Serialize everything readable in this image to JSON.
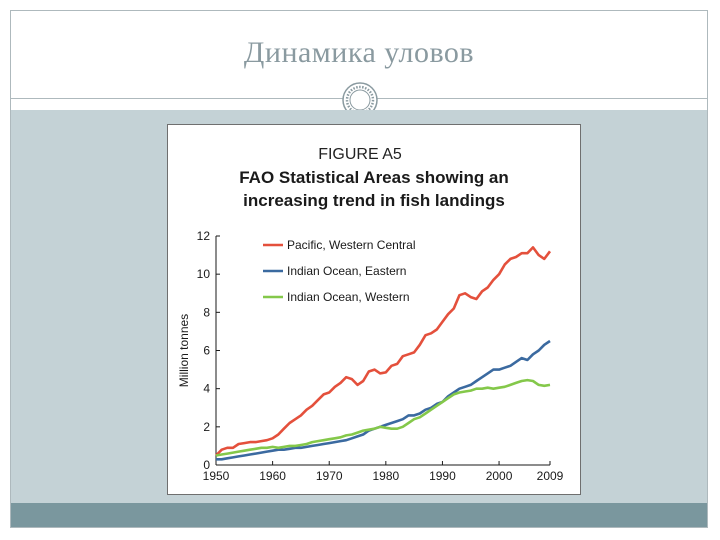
{
  "slide": {
    "title": "Динамика уловов"
  },
  "chart_data": {
    "type": "line",
    "figure_label": "FIGURE A5",
    "title": "FAO Statistical Areas showing an increasing trend in fish landings",
    "title_lines": [
      "FAO Statistical Areas showing an",
      "increasing trend in fish landings"
    ],
    "xlabel": "",
    "ylabel": "Million tonnes",
    "xlim": [
      1950,
      2009
    ],
    "ylim": [
      0,
      12
    ],
    "x_ticks": [
      1950,
      1960,
      1970,
      1980,
      1990,
      2000,
      2009
    ],
    "y_ticks": [
      0,
      2,
      4,
      6,
      8,
      10,
      12
    ],
    "legend_position": "top-left",
    "grid": false,
    "series": [
      {
        "name": "Pacific, Western Central",
        "color": "#e4503c",
        "points": [
          [
            1950,
            0.5
          ],
          [
            1951,
            0.8
          ],
          [
            1952,
            0.9
          ],
          [
            1953,
            0.9
          ],
          [
            1954,
            1.1
          ],
          [
            1955,
            1.15
          ],
          [
            1956,
            1.2
          ],
          [
            1957,
            1.2
          ],
          [
            1958,
            1.25
          ],
          [
            1959,
            1.3
          ],
          [
            1960,
            1.4
          ],
          [
            1961,
            1.6
          ],
          [
            1962,
            1.9
          ],
          [
            1963,
            2.2
          ],
          [
            1964,
            2.4
          ],
          [
            1965,
            2.6
          ],
          [
            1966,
            2.9
          ],
          [
            1967,
            3.1
          ],
          [
            1968,
            3.4
          ],
          [
            1969,
            3.7
          ],
          [
            1970,
            3.8
          ],
          [
            1971,
            4.1
          ],
          [
            1972,
            4.3
          ],
          [
            1973,
            4.6
          ],
          [
            1974,
            4.5
          ],
          [
            1975,
            4.2
          ],
          [
            1976,
            4.4
          ],
          [
            1977,
            4.9
          ],
          [
            1978,
            5.0
          ],
          [
            1979,
            4.8
          ],
          [
            1980,
            4.85
          ],
          [
            1981,
            5.2
          ],
          [
            1982,
            5.3
          ],
          [
            1983,
            5.7
          ],
          [
            1984,
            5.8
          ],
          [
            1985,
            5.9
          ],
          [
            1986,
            6.3
          ],
          [
            1987,
            6.8
          ],
          [
            1988,
            6.9
          ],
          [
            1989,
            7.1
          ],
          [
            1990,
            7.5
          ],
          [
            1991,
            7.9
          ],
          [
            1992,
            8.2
          ],
          [
            1993,
            8.9
          ],
          [
            1994,
            9.0
          ],
          [
            1995,
            8.8
          ],
          [
            1996,
            8.7
          ],
          [
            1997,
            9.1
          ],
          [
            1998,
            9.3
          ],
          [
            1999,
            9.7
          ],
          [
            2000,
            10.0
          ],
          [
            2001,
            10.5
          ],
          [
            2002,
            10.8
          ],
          [
            2003,
            10.9
          ],
          [
            2004,
            11.1
          ],
          [
            2005,
            11.1
          ],
          [
            2006,
            11.4
          ],
          [
            2007,
            11.0
          ],
          [
            2008,
            10.8
          ],
          [
            2009,
            11.2
          ]
        ]
      },
      {
        "name": "Indian Ocean, Eastern",
        "color": "#3b6aa0",
        "points": [
          [
            1950,
            0.3
          ],
          [
            1951,
            0.3
          ],
          [
            1952,
            0.35
          ],
          [
            1953,
            0.4
          ],
          [
            1954,
            0.45
          ],
          [
            1955,
            0.5
          ],
          [
            1956,
            0.55
          ],
          [
            1957,
            0.6
          ],
          [
            1958,
            0.65
          ],
          [
            1959,
            0.7
          ],
          [
            1960,
            0.75
          ],
          [
            1961,
            0.8
          ],
          [
            1962,
            0.8
          ],
          [
            1963,
            0.85
          ],
          [
            1964,
            0.9
          ],
          [
            1965,
            0.9
          ],
          [
            1966,
            0.95
          ],
          [
            1967,
            1.0
          ],
          [
            1968,
            1.05
          ],
          [
            1969,
            1.1
          ],
          [
            1970,
            1.15
          ],
          [
            1971,
            1.2
          ],
          [
            1972,
            1.25
          ],
          [
            1973,
            1.3
          ],
          [
            1974,
            1.4
          ],
          [
            1975,
            1.5
          ],
          [
            1976,
            1.6
          ],
          [
            1977,
            1.8
          ],
          [
            1978,
            1.9
          ],
          [
            1979,
            2.0
          ],
          [
            1980,
            2.1
          ],
          [
            1981,
            2.2
          ],
          [
            1982,
            2.3
          ],
          [
            1983,
            2.4
          ],
          [
            1984,
            2.6
          ],
          [
            1985,
            2.6
          ],
          [
            1986,
            2.7
          ],
          [
            1987,
            2.9
          ],
          [
            1988,
            3.0
          ],
          [
            1989,
            3.2
          ],
          [
            1990,
            3.3
          ],
          [
            1991,
            3.6
          ],
          [
            1992,
            3.8
          ],
          [
            1993,
            4.0
          ],
          [
            1994,
            4.1
          ],
          [
            1995,
            4.2
          ],
          [
            1996,
            4.4
          ],
          [
            1997,
            4.6
          ],
          [
            1998,
            4.8
          ],
          [
            1999,
            5.0
          ],
          [
            2000,
            5.0
          ],
          [
            2001,
            5.1
          ],
          [
            2002,
            5.2
          ],
          [
            2003,
            5.4
          ],
          [
            2004,
            5.6
          ],
          [
            2005,
            5.5
          ],
          [
            2006,
            5.8
          ],
          [
            2007,
            6.0
          ],
          [
            2008,
            6.3
          ],
          [
            2009,
            6.5
          ]
        ]
      },
      {
        "name": "Indian Ocean, Western",
        "color": "#84c84a",
        "points": [
          [
            1950,
            0.5
          ],
          [
            1951,
            0.55
          ],
          [
            1952,
            0.6
          ],
          [
            1953,
            0.65
          ],
          [
            1954,
            0.7
          ],
          [
            1955,
            0.75
          ],
          [
            1956,
            0.8
          ],
          [
            1957,
            0.85
          ],
          [
            1958,
            0.9
          ],
          [
            1959,
            0.9
          ],
          [
            1960,
            0.95
          ],
          [
            1961,
            0.9
          ],
          [
            1962,
            0.95
          ],
          [
            1963,
            1.0
          ],
          [
            1964,
            1.0
          ],
          [
            1965,
            1.05
          ],
          [
            1966,
            1.1
          ],
          [
            1967,
            1.2
          ],
          [
            1968,
            1.25
          ],
          [
            1969,
            1.3
          ],
          [
            1970,
            1.35
          ],
          [
            1971,
            1.4
          ],
          [
            1972,
            1.45
          ],
          [
            1973,
            1.55
          ],
          [
            1974,
            1.6
          ],
          [
            1975,
            1.7
          ],
          [
            1976,
            1.8
          ],
          [
            1977,
            1.85
          ],
          [
            1978,
            1.9
          ],
          [
            1979,
            2.0
          ],
          [
            1980,
            1.95
          ],
          [
            1981,
            1.9
          ],
          [
            1982,
            1.9
          ],
          [
            1983,
            2.0
          ],
          [
            1984,
            2.2
          ],
          [
            1985,
            2.4
          ],
          [
            1986,
            2.5
          ],
          [
            1987,
            2.7
          ],
          [
            1988,
            2.9
          ],
          [
            1989,
            3.1
          ],
          [
            1990,
            3.3
          ],
          [
            1991,
            3.5
          ],
          [
            1992,
            3.7
          ],
          [
            1993,
            3.8
          ],
          [
            1994,
            3.85
          ],
          [
            1995,
            3.9
          ],
          [
            1996,
            4.0
          ],
          [
            1997,
            4.0
          ],
          [
            1998,
            4.05
          ],
          [
            1999,
            4.0
          ],
          [
            2000,
            4.05
          ],
          [
            2001,
            4.1
          ],
          [
            2002,
            4.2
          ],
          [
            2003,
            4.3
          ],
          [
            2004,
            4.4
          ],
          [
            2005,
            4.45
          ],
          [
            2006,
            4.4
          ],
          [
            2007,
            4.2
          ],
          [
            2008,
            4.15
          ],
          [
            2009,
            4.2
          ]
        ]
      }
    ]
  }
}
